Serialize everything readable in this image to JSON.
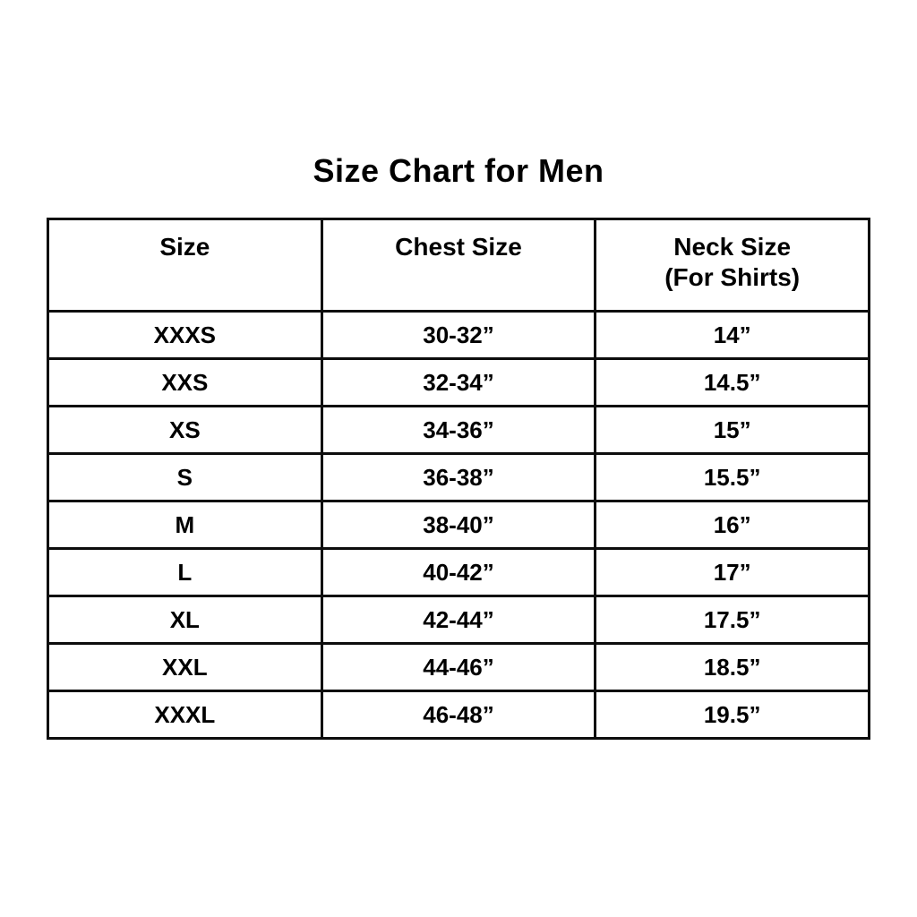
{
  "title": "Size Chart for Men",
  "table": {
    "headers": {
      "size": "Size",
      "chest": "Chest Size",
      "neck_line1": "Neck Size",
      "neck_line2": "(For Shirts)"
    },
    "rows": [
      [
        "XXXS",
        "30-32”",
        "14”"
      ],
      [
        "XXS",
        "32-34”",
        "14.5”"
      ],
      [
        "XS",
        "34-36”",
        "15”"
      ],
      [
        "S",
        "36-38”",
        "15.5”"
      ],
      [
        "M",
        "38-40”",
        "16”"
      ],
      [
        "L",
        "40-42”",
        "17”"
      ],
      [
        "XL",
        "42-44”",
        "17.5”"
      ],
      [
        "XXL",
        "44-46”",
        "18.5”"
      ],
      [
        "XXXL",
        "46-48”",
        "19.5”"
      ]
    ]
  },
  "chart_data": {
    "type": "table",
    "title": "Size Chart for Men",
    "columns": [
      "Size",
      "Chest Size",
      "Neck Size (For Shirts)"
    ],
    "rows": [
      [
        "XXXS",
        "30-32”",
        "14”"
      ],
      [
        "XXS",
        "32-34”",
        "14.5”"
      ],
      [
        "XS",
        "34-36”",
        "15”"
      ],
      [
        "S",
        "36-38”",
        "15.5”"
      ],
      [
        "M",
        "38-40”",
        "16”"
      ],
      [
        "L",
        "40-42”",
        "17”"
      ],
      [
        "XL",
        "42-44”",
        "17.5”"
      ],
      [
        "XXL",
        "44-46”",
        "18.5”"
      ],
      [
        "XXXL",
        "46-48”",
        "19.5”"
      ]
    ],
    "layout": {
      "grid": true,
      "text_color": "#000000",
      "border_color": "#0d0d0d",
      "background": "#ffffff",
      "columns_equal_width": true
    }
  }
}
